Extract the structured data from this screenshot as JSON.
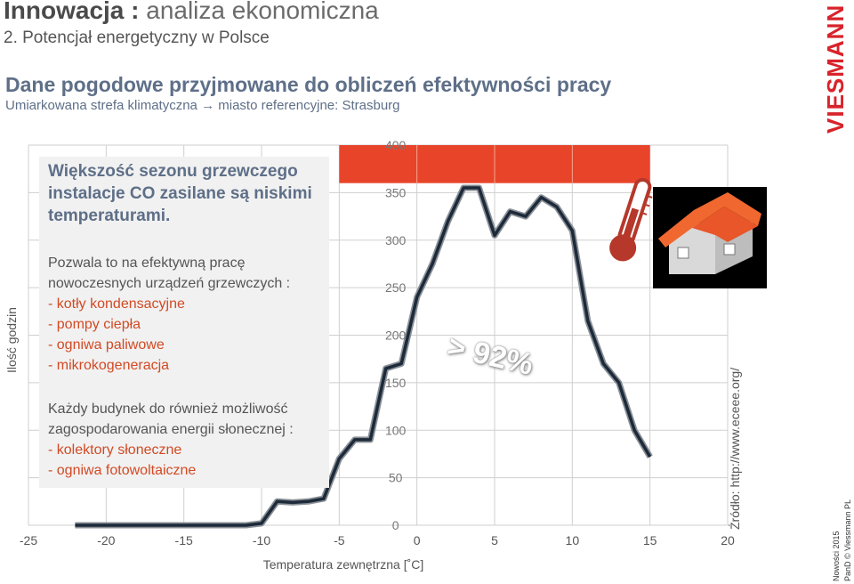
{
  "header": {
    "title_bold": "Innowacja :",
    "title_rest": " analiza ekonomiczna",
    "subtitle": "2. Potencjał energetyczny w Polsce"
  },
  "section": {
    "title": "Dane pogodowe przyjmowane do obliczeń efektywności pracy",
    "subtitle": "Umiarkowana strefa klimatyczna → miasto referencyjne: Strasburg"
  },
  "logo": {
    "text": "VIESMANN",
    "color": "#d8232a"
  },
  "text_box": {
    "headline": "Większość sezonu grzewczego instalacje CO zasilane są niskimi temperaturami.",
    "para1": "Pozwala to na efektywną pracę nowoczesnych urządzeń grzewczych :",
    "list1": [
      "- kotły kondensacyjne",
      "- pompy ciepła",
      "- ogniwa paliwowe",
      "- mikrokogeneracja"
    ],
    "para2": "Każdy budynek do również możliwość zagospodarowania energii słonecznej :",
    "list2": [
      "- kolektory słoneczne",
      "- ogniwa fotowoltaiczne"
    ]
  },
  "percent_label": "> 92%",
  "source": "Źródło: http://www.eceee.org/",
  "footer": {
    "line1": "Nowości 2015",
    "line2": "PanD  ©  Viessmann PL"
  },
  "icons": {
    "thermometer": "thermometer-icon",
    "house": "house-icon"
  },
  "colors": {
    "accent": "#e8442a",
    "line": "#1c2a3a",
    "text_red": "#d24a24"
  },
  "chart_data": {
    "type": "line",
    "title": "",
    "xlabel": "Temperatura zewnętrzna [˚C]",
    "ylabel": "Ilość godzin",
    "xlim": [
      -25,
      20
    ],
    "ylim": [
      0,
      400
    ],
    "x_ticks": [
      -25,
      -20,
      -15,
      -10,
      -5,
      0,
      5,
      10,
      15,
      20
    ],
    "y_ticks": [
      0,
      50,
      100,
      150,
      200,
      250,
      300,
      350,
      400
    ],
    "grid": true,
    "x": [
      -22,
      -21,
      -20,
      -19,
      -18,
      -17,
      -16,
      -15,
      -14,
      -13,
      -12,
      -11,
      -10,
      -9,
      -8,
      -7,
      -6,
      -5,
      -4,
      -3,
      -2,
      -1,
      0,
      1,
      2,
      3,
      4,
      5,
      6,
      7,
      8,
      9,
      10,
      11,
      12,
      13,
      14,
      15
    ],
    "series": [
      {
        "values": [
          0,
          0,
          0,
          0,
          0,
          0,
          0,
          0,
          0,
          0,
          0,
          0,
          2,
          25,
          24,
          25,
          28,
          70,
          90,
          90,
          165,
          170,
          240,
          275,
          320,
          355,
          355,
          305,
          330,
          325,
          345,
          335,
          310,
          215,
          170,
          150,
          100,
          72
        ]
      }
    ],
    "highlight_band": {
      "x_range": [
        -5,
        15
      ],
      "y_range": [
        360,
        400
      ],
      "color": "#e8442a"
    }
  }
}
